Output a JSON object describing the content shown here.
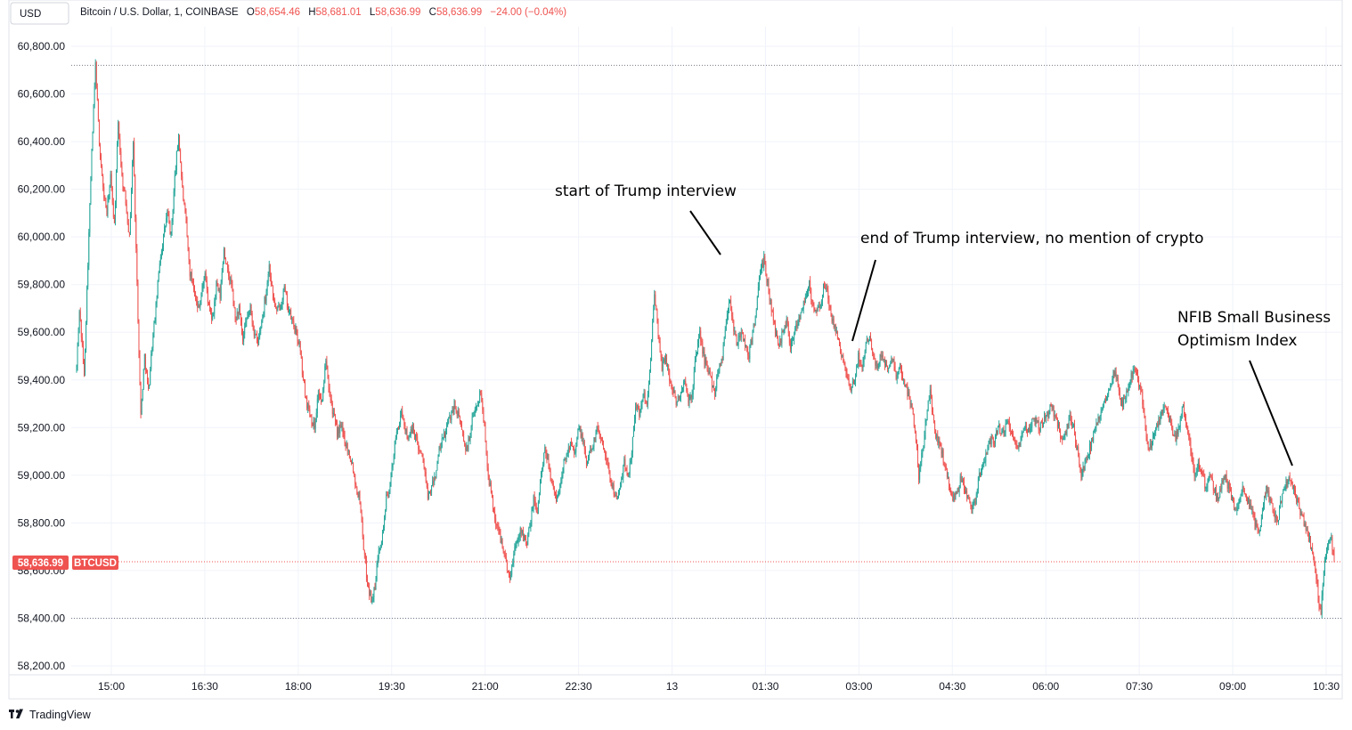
{
  "header": {
    "currency_button": "USD",
    "symbol_title": "Bitcoin / U.S. Dollar, 1, COINBASE",
    "ohlc": {
      "o_label": "O",
      "o_value": "58,654.46",
      "h_label": "H",
      "h_value": "58,681.01",
      "l_label": "L",
      "l_value": "58,636.99",
      "c_label": "C",
      "c_value": "58,636.99",
      "change": "−24.00 (−0.04%)"
    }
  },
  "branding": {
    "logo_text": "TradingView"
  },
  "price_badge": {
    "price": "58,636.99",
    "symbol": "BTCUSD"
  },
  "colors": {
    "up": "#26a69a",
    "down": "#ef5350",
    "grid": "#f0f3fa",
    "annotation_line": "#000000",
    "text": "#131722"
  },
  "chart_data": {
    "type": "candlestick",
    "symbol": "BTCUSD",
    "interval": "1",
    "ylim": [
      58130,
      60880
    ],
    "y_ticks": [
      "60,800.00",
      "60,600.00",
      "60,400.00",
      "60,200.00",
      "60,000.00",
      "59,800.00",
      "59,600.00",
      "59,400.00",
      "59,200.00",
      "59,000.00",
      "58,800.00",
      "58,600.00",
      "58,400.00",
      "58,200.00"
    ],
    "y_tick_values": [
      60800,
      60600,
      60400,
      60200,
      60000,
      59800,
      59600,
      59400,
      59200,
      59000,
      58800,
      58600,
      58400,
      58200
    ],
    "x_ticks": [
      "15:00",
      "16:30",
      "18:00",
      "19:30",
      "21:00",
      "22:30",
      "13",
      "01:30",
      "03:00",
      "04:30",
      "06:00",
      "07:30",
      "09:00",
      "10:30"
    ],
    "high_marker": 60720,
    "low_marker": 58400,
    "last_price": 58636.99,
    "price_path": [
      [
        0,
        59450
      ],
      [
        3,
        59700
      ],
      [
        8,
        59420
      ],
      [
        12,
        59900
      ],
      [
        16,
        60350
      ],
      [
        20,
        60720
      ],
      [
        24,
        60400
      ],
      [
        28,
        60200
      ],
      [
        32,
        60100
      ],
      [
        36,
        60250
      ],
      [
        40,
        60050
      ],
      [
        44,
        60480
      ],
      [
        48,
        60250
      ],
      [
        52,
        60150
      ],
      [
        56,
        60000
      ],
      [
        60,
        60400
      ],
      [
        64,
        59800
      ],
      [
        68,
        59250
      ],
      [
        72,
        59500
      ],
      [
        76,
        59350
      ],
      [
        80,
        59550
      ],
      [
        84,
        59700
      ],
      [
        88,
        59900
      ],
      [
        92,
        60000
      ],
      [
        96,
        60100
      ],
      [
        100,
        60000
      ],
      [
        104,
        60250
      ],
      [
        108,
        60430
      ],
      [
        112,
        60200
      ],
      [
        116,
        60050
      ],
      [
        120,
        59850
      ],
      [
        124,
        59800
      ],
      [
        128,
        59700
      ],
      [
        132,
        59750
      ],
      [
        136,
        59850
      ],
      [
        140,
        59700
      ],
      [
        144,
        59650
      ],
      [
        148,
        59800
      ],
      [
        152,
        59750
      ],
      [
        156,
        59950
      ],
      [
        160,
        59850
      ],
      [
        164,
        59800
      ],
      [
        168,
        59650
      ],
      [
        172,
        59700
      ],
      [
        176,
        59560
      ],
      [
        180,
        59650
      ],
      [
        184,
        59700
      ],
      [
        188,
        59600
      ],
      [
        192,
        59550
      ],
      [
        196,
        59650
      ],
      [
        200,
        59750
      ],
      [
        204,
        59880
      ],
      [
        208,
        59750
      ],
      [
        212,
        59680
      ],
      [
        216,
        59720
      ],
      [
        220,
        59780
      ],
      [
        224,
        59700
      ],
      [
        228,
        59650
      ],
      [
        232,
        59600
      ],
      [
        236,
        59550
      ],
      [
        240,
        59400
      ],
      [
        244,
        59300
      ],
      [
        248,
        59250
      ],
      [
        252,
        59200
      ],
      [
        256,
        59350
      ],
      [
        260,
        59300
      ],
      [
        264,
        59500
      ],
      [
        268,
        59350
      ],
      [
        272,
        59250
      ],
      [
        276,
        59180
      ],
      [
        280,
        59200
      ],
      [
        284,
        59150
      ],
      [
        288,
        59100
      ],
      [
        292,
        59050
      ],
      [
        296,
        58950
      ],
      [
        300,
        58900
      ],
      [
        304,
        58700
      ],
      [
        308,
        58550
      ],
      [
        312,
        58480
      ],
      [
        316,
        58520
      ],
      [
        320,
        58700
      ],
      [
        324,
        58750
      ],
      [
        328,
        58900
      ],
      [
        332,
        58950
      ],
      [
        336,
        59100
      ],
      [
        340,
        59200
      ],
      [
        344,
        59250
      ],
      [
        348,
        59200
      ],
      [
        352,
        59150
      ],
      [
        356,
        59200
      ],
      [
        360,
        59150
      ],
      [
        364,
        59100
      ],
      [
        368,
        59050
      ],
      [
        372,
        58900
      ],
      [
        376,
        58950
      ],
      [
        380,
        59000
      ],
      [
        384,
        59100
      ],
      [
        388,
        59150
      ],
      [
        392,
        59200
      ],
      [
        396,
        59250
      ],
      [
        400,
        59300
      ],
      [
        404,
        59250
      ],
      [
        408,
        59200
      ],
      [
        412,
        59100
      ],
      [
        416,
        59150
      ],
      [
        420,
        59250
      ],
      [
        424,
        59300
      ],
      [
        428,
        59350
      ],
      [
        432,
        59200
      ],
      [
        436,
        59000
      ],
      [
        440,
        58900
      ],
      [
        444,
        58800
      ],
      [
        448,
        58750
      ],
      [
        452,
        58700
      ],
      [
        456,
        58600
      ],
      [
        460,
        58580
      ],
      [
        464,
        58700
      ],
      [
        468,
        58750
      ],
      [
        472,
        58780
      ],
      [
        476,
        58700
      ],
      [
        480,
        58780
      ],
      [
        484,
        58900
      ],
      [
        488,
        58850
      ],
      [
        492,
        59000
      ],
      [
        496,
        59100
      ],
      [
        500,
        59050
      ],
      [
        504,
        58950
      ],
      [
        508,
        58900
      ],
      [
        512,
        58950
      ],
      [
        516,
        59050
      ],
      [
        520,
        59100
      ],
      [
        524,
        59150
      ],
      [
        528,
        59100
      ],
      [
        532,
        59200
      ],
      [
        536,
        59150
      ],
      [
        540,
        59050
      ],
      [
        544,
        59100
      ],
      [
        548,
        59150
      ],
      [
        552,
        59200
      ],
      [
        556,
        59150
      ],
      [
        560,
        59100
      ],
      [
        564,
        59000
      ],
      [
        568,
        58950
      ],
      [
        572,
        58900
      ],
      [
        576,
        58950
      ],
      [
        580,
        59050
      ],
      [
        584,
        59000
      ],
      [
        588,
        59100
      ],
      [
        592,
        59300
      ],
      [
        596,
        59250
      ],
      [
        600,
        59350
      ],
      [
        604,
        59300
      ],
      [
        608,
        59500
      ],
      [
        612,
        59750
      ],
      [
        616,
        59600
      ],
      [
        620,
        59450
      ],
      [
        624,
        59500
      ],
      [
        628,
        59400
      ],
      [
        632,
        59350
      ],
      [
        636,
        59300
      ],
      [
        640,
        59350
      ],
      [
        644,
        59400
      ],
      [
        648,
        59300
      ],
      [
        652,
        59350
      ],
      [
        656,
        59500
      ],
      [
        660,
        59600
      ],
      [
        664,
        59500
      ],
      [
        668,
        59450
      ],
      [
        672,
        59400
      ],
      [
        676,
        59350
      ],
      [
        680,
        59450
      ],
      [
        684,
        59500
      ],
      [
        688,
        59650
      ],
      [
        692,
        59750
      ],
      [
        696,
        59600
      ],
      [
        700,
        59550
      ],
      [
        704,
        59600
      ],
      [
        708,
        59550
      ],
      [
        712,
        59500
      ],
      [
        716,
        59600
      ],
      [
        720,
        59700
      ],
      [
        724,
        59850
      ],
      [
        728,
        59900
      ],
      [
        732,
        59800
      ],
      [
        736,
        59700
      ],
      [
        740,
        59600
      ],
      [
        744,
        59550
      ],
      [
        748,
        59600
      ],
      [
        752,
        59650
      ],
      [
        756,
        59550
      ],
      [
        760,
        59600
      ],
      [
        764,
        59650
      ],
      [
        768,
        59700
      ],
      [
        772,
        59750
      ],
      [
        776,
        59800
      ],
      [
        780,
        59700
      ],
      [
        784,
        59680
      ],
      [
        788,
        59720
      ],
      [
        792,
        59800
      ],
      [
        796,
        59750
      ],
      [
        800,
        59650
      ],
      [
        804,
        59600
      ],
      [
        808,
        59550
      ],
      [
        812,
        59480
      ],
      [
        816,
        59400
      ],
      [
        820,
        59350
      ],
      [
        824,
        59400
      ],
      [
        828,
        59500
      ],
      [
        832,
        59450
      ],
      [
        836,
        59550
      ],
      [
        840,
        59600
      ],
      [
        844,
        59500
      ],
      [
        848,
        59450
      ],
      [
        852,
        59500
      ],
      [
        856,
        59480
      ],
      [
        860,
        59450
      ],
      [
        864,
        59500
      ],
      [
        868,
        59420
      ],
      [
        872,
        59450
      ],
      [
        876,
        59400
      ],
      [
        880,
        59350
      ],
      [
        884,
        59300
      ],
      [
        888,
        59200
      ],
      [
        892,
        59000
      ],
      [
        896,
        59100
      ],
      [
        900,
        59250
      ],
      [
        904,
        59350
      ],
      [
        908,
        59200
      ],
      [
        912,
        59150
      ],
      [
        916,
        59100
      ],
      [
        920,
        59050
      ],
      [
        924,
        58950
      ],
      [
        928,
        58900
      ],
      [
        932,
        58920
      ],
      [
        936,
        58980
      ],
      [
        940,
        58950
      ],
      [
        944,
        58900
      ],
      [
        948,
        58860
      ],
      [
        952,
        58900
      ],
      [
        956,
        59000
      ],
      [
        960,
        59050
      ],
      [
        964,
        59100
      ],
      [
        968,
        59150
      ],
      [
        972,
        59150
      ],
      [
        976,
        59200
      ],
      [
        980,
        59180
      ],
      [
        984,
        59200
      ],
      [
        988,
        59220
      ],
      [
        992,
        59150
      ],
      [
        996,
        59100
      ],
      [
        1000,
        59150
      ],
      [
        1004,
        59200
      ],
      [
        1008,
        59180
      ],
      [
        1012,
        59220
      ],
      [
        1016,
        59240
      ],
      [
        1020,
        59200
      ],
      [
        1024,
        59230
      ],
      [
        1028,
        59250
      ],
      [
        1032,
        59300
      ],
      [
        1036,
        59250
      ],
      [
        1040,
        59200
      ],
      [
        1044,
        59150
      ],
      [
        1048,
        59180
      ],
      [
        1052,
        59250
      ],
      [
        1056,
        59200
      ],
      [
        1060,
        59100
      ],
      [
        1064,
        59000
      ],
      [
        1068,
        59050
      ],
      [
        1072,
        59100
      ],
      [
        1076,
        59150
      ],
      [
        1080,
        59200
      ],
      [
        1084,
        59250
      ],
      [
        1088,
        59300
      ],
      [
        1092,
        59350
      ],
      [
        1096,
        59400
      ],
      [
        1100,
        59450
      ],
      [
        1104,
        59350
      ],
      [
        1108,
        59300
      ],
      [
        1112,
        59350
      ],
      [
        1116,
        59400
      ],
      [
        1120,
        59450
      ],
      [
        1124,
        59400
      ],
      [
        1128,
        59350
      ],
      [
        1132,
        59200
      ],
      [
        1136,
        59100
      ],
      [
        1140,
        59150
      ],
      [
        1144,
        59200
      ],
      [
        1148,
        59250
      ],
      [
        1152,
        59300
      ],
      [
        1156,
        59250
      ],
      [
        1160,
        59200
      ],
      [
        1164,
        59150
      ],
      [
        1168,
        59200
      ],
      [
        1172,
        59300
      ],
      [
        1176,
        59200
      ],
      [
        1180,
        59100
      ],
      [
        1184,
        59000
      ],
      [
        1188,
        59050
      ],
      [
        1192,
        59000
      ],
      [
        1196,
        58950
      ],
      [
        1200,
        59000
      ],
      [
        1204,
        58950
      ],
      [
        1208,
        58900
      ],
      [
        1212,
        58950
      ],
      [
        1216,
        59000
      ],
      [
        1220,
        58950
      ],
      [
        1224,
        58900
      ],
      [
        1228,
        58850
      ],
      [
        1232,
        58900
      ],
      [
        1236,
        58950
      ],
      [
        1240,
        58900
      ],
      [
        1244,
        58850
      ],
      [
        1248,
        58800
      ],
      [
        1252,
        58750
      ],
      [
        1256,
        58850
      ],
      [
        1260,
        58950
      ],
      [
        1264,
        58900
      ],
      [
        1268,
        58850
      ],
      [
        1272,
        58800
      ],
      [
        1276,
        58900
      ],
      [
        1280,
        58950
      ],
      [
        1284,
        59000
      ],
      [
        1288,
        58950
      ],
      [
        1292,
        58900
      ],
      [
        1296,
        58850
      ],
      [
        1300,
        58800
      ],
      [
        1304,
        58750
      ],
      [
        1308,
        58700
      ],
      [
        1312,
        58600
      ],
      [
        1316,
        58450
      ],
      [
        1318,
        58400
      ],
      [
        1320,
        58560
      ],
      [
        1324,
        58700
      ],
      [
        1328,
        58750
      ],
      [
        1332,
        58640
      ]
    ]
  },
  "annotations": [
    {
      "lines": [
        "start of Trump interview"
      ]
    },
    {
      "lines": [
        "end of Trump interview, no mention of crypto"
      ]
    },
    {
      "lines": [
        "NFIB Small Business",
        "Optimism Index"
      ]
    }
  ]
}
